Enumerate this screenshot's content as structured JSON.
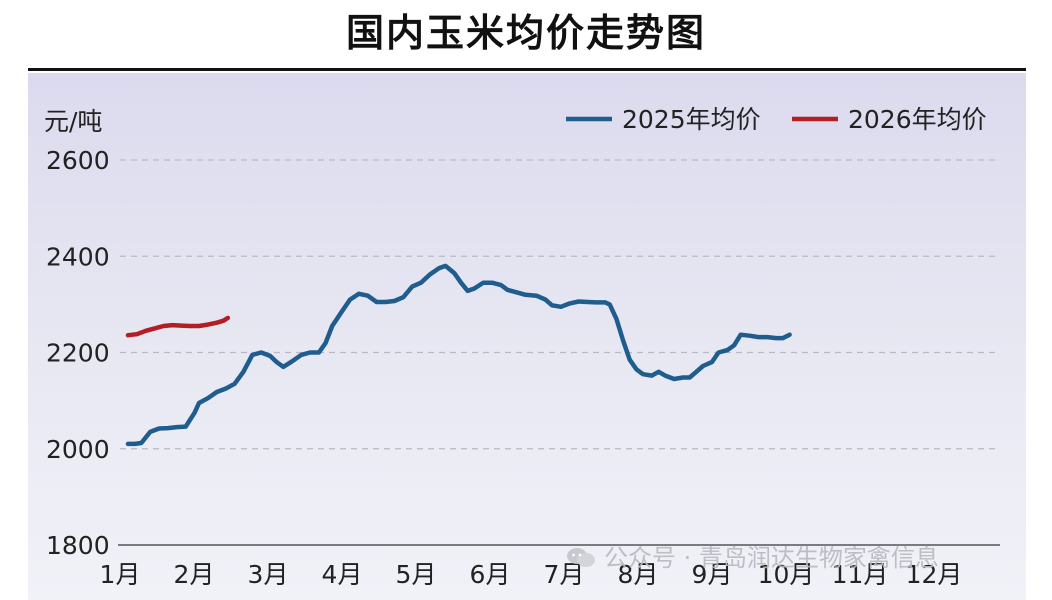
{
  "header": {
    "title": "国内玉米均价走势图"
  },
  "watermark": {
    "text": "公众号 · 青岛润达生物家禽信息",
    "icon": "wechat-icon"
  },
  "chart_data": {
    "type": "line",
    "title": "国内玉米均价走势图",
    "ylabel": "元/吨",
    "xlabel": "",
    "ylim": [
      1800,
      2600
    ],
    "yticks": [
      1800,
      2000,
      2200,
      2400,
      2600
    ],
    "grid": true,
    "legend_position": "top-right",
    "x_months": [
      "1月",
      "2月",
      "3月",
      "4月",
      "5月",
      "6月",
      "7月",
      "8月",
      "9月",
      "10月",
      "11月",
      "12月"
    ],
    "series": [
      {
        "name": "2025年均价",
        "color": "#1f5d8f",
        "points": [
          [
            0.0,
            2010
          ],
          [
            0.15,
            2010
          ],
          [
            0.3,
            2012
          ],
          [
            0.5,
            2035
          ],
          [
            0.7,
            2042
          ],
          [
            0.9,
            2043
          ],
          [
            1.1,
            2045
          ],
          [
            1.3,
            2046
          ],
          [
            1.5,
            2075
          ],
          [
            1.6,
            2095
          ],
          [
            1.8,
            2105
          ],
          [
            2.0,
            2118
          ],
          [
            2.2,
            2125
          ],
          [
            2.4,
            2135
          ],
          [
            2.6,
            2160
          ],
          [
            2.8,
            2195
          ],
          [
            3.0,
            2200
          ],
          [
            3.2,
            2193
          ],
          [
            3.35,
            2180
          ],
          [
            3.5,
            2170
          ],
          [
            3.7,
            2182
          ],
          [
            3.9,
            2195
          ],
          [
            4.1,
            2200
          ],
          [
            4.3,
            2200
          ],
          [
            4.45,
            2220
          ],
          [
            4.6,
            2255
          ],
          [
            4.8,
            2283
          ],
          [
            5.0,
            2310
          ],
          [
            5.2,
            2322
          ],
          [
            5.4,
            2318
          ],
          [
            5.6,
            2305
          ],
          [
            5.8,
            2305
          ],
          [
            6.0,
            2307
          ],
          [
            6.2,
            2315
          ],
          [
            6.4,
            2337
          ],
          [
            6.6,
            2345
          ],
          [
            6.8,
            2362
          ],
          [
            7.0,
            2375
          ],
          [
            7.15,
            2380
          ],
          [
            7.35,
            2365
          ],
          [
            7.5,
            2345
          ],
          [
            7.65,
            2328
          ],
          [
            7.8,
            2333
          ],
          [
            8.0,
            2345
          ],
          [
            8.2,
            2345
          ],
          [
            8.4,
            2340
          ],
          [
            8.55,
            2330
          ],
          [
            8.75,
            2325
          ],
          [
            8.95,
            2320
          ],
          [
            9.2,
            2318
          ],
          [
            9.4,
            2310
          ],
          [
            9.55,
            2298
          ],
          [
            9.75,
            2295
          ],
          [
            9.95,
            2302
          ],
          [
            10.15,
            2306
          ],
          [
            10.35,
            2305
          ],
          [
            10.55,
            2304
          ],
          [
            10.75,
            2304
          ],
          [
            10.85,
            2300
          ],
          [
            11.0,
            2270
          ],
          [
            11.15,
            2225
          ],
          [
            11.3,
            2185
          ],
          [
            11.45,
            2165
          ],
          [
            11.6,
            2155
          ],
          [
            11.8,
            2152
          ],
          [
            11.95,
            2160
          ],
          [
            12.1,
            2152
          ],
          [
            12.3,
            2145
          ],
          [
            12.5,
            2148
          ],
          [
            12.65,
            2148
          ],
          [
            12.8,
            2160
          ],
          [
            12.95,
            2172
          ],
          [
            13.15,
            2180
          ],
          [
            13.3,
            2200
          ],
          [
            13.5,
            2205
          ],
          [
            13.65,
            2215
          ],
          [
            13.8,
            2237
          ],
          [
            14.0,
            2235
          ],
          [
            14.2,
            2232
          ],
          [
            14.4,
            2232
          ],
          [
            14.6,
            2230
          ],
          [
            14.75,
            2230
          ],
          [
            14.9,
            2237
          ]
        ]
      },
      {
        "name": "2026年均价",
        "color": "#b21e24",
        "points": [
          [
            0.0,
            2236
          ],
          [
            0.2,
            2238
          ],
          [
            0.4,
            2245
          ],
          [
            0.6,
            2250
          ],
          [
            0.8,
            2255
          ],
          [
            1.0,
            2257
          ],
          [
            1.2,
            2256
          ],
          [
            1.4,
            2255
          ],
          [
            1.6,
            2255
          ],
          [
            1.8,
            2258
          ],
          [
            2.0,
            2262
          ],
          [
            2.15,
            2266
          ],
          [
            2.25,
            2272
          ]
        ]
      }
    ]
  }
}
